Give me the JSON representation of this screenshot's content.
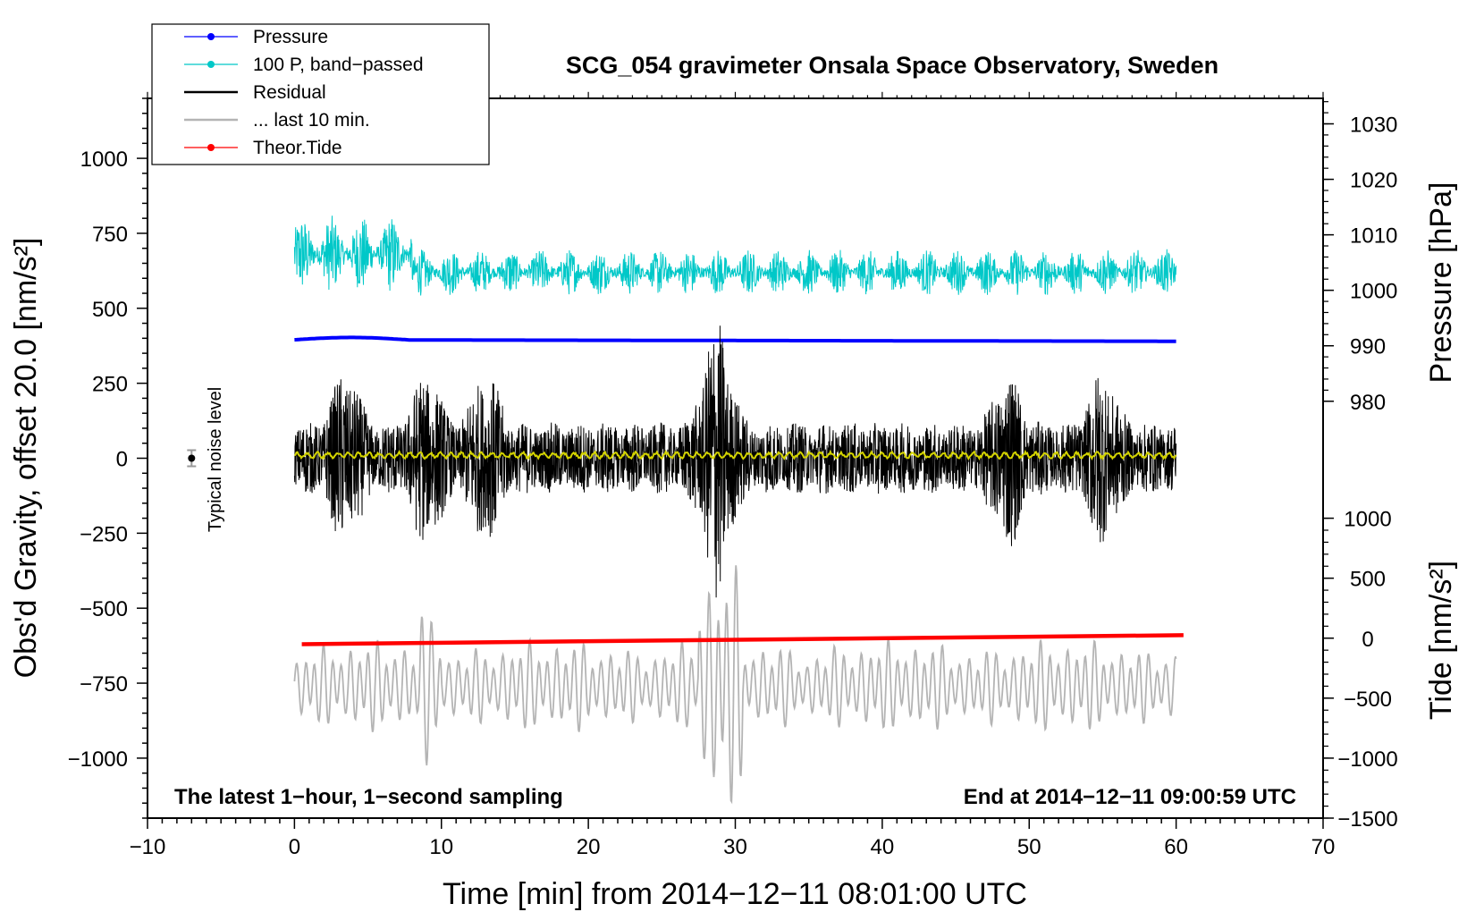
{
  "chart_data": {
    "type": "line",
    "title": "SCG_054 gravimeter Onsala Space Observatory, Sweden",
    "xlabel": "Time [min] from 2014−12−11 08:01:00 UTC",
    "ylabel_left": "Obs'd Gravity, offset 20.0 [nm/s²]",
    "ylabel_right_top": "Pressure [hPa]",
    "ylabel_right_bottom": "Tide [nm/s²]",
    "xlim": [
      -10,
      70
    ],
    "ylim_left": [
      -1200,
      1200
    ],
    "x_ticks": [
      -10,
      0,
      10,
      20,
      30,
      40,
      50,
      60,
      70
    ],
    "x_tick_labels": [
      "−10",
      "0",
      "10",
      "20",
      "30",
      "40",
      "50",
      "60",
      "70"
    ],
    "y_left_ticks": [
      1000,
      750,
      500,
      250,
      0,
      -250,
      -500,
      -750,
      -1000
    ],
    "y_left_tick_labels": [
      "1000",
      "750",
      "500",
      "250",
      "0",
      "−250",
      "−500",
      "−750",
      "−1000"
    ],
    "pressure_axis": {
      "ticks": [
        1030,
        1020,
        1010,
        1000,
        990,
        980
      ],
      "tick_labels": [
        "1030",
        "1020",
        "1010",
        "1000",
        "990",
        "980"
      ],
      "ticks_in_left_units": [
        1115,
        930,
        745,
        560,
        375,
        190
      ]
    },
    "tide_axis": {
      "ticks": [
        1000,
        500,
        0,
        -500,
        -1000,
        -1500
      ],
      "tick_labels": [
        "1000",
        "500",
        "0",
        "−500",
        "−1000",
        "−1500"
      ],
      "ticks_in_left_units": [
        -200,
        -400,
        -600,
        -800,
        -1000,
        -1200
      ]
    },
    "legend": [
      {
        "label": "Pressure",
        "color": "#0000ff",
        "marker": true
      },
      {
        "label": "100 P, band−passed",
        "color": "#00c8c8",
        "marker": true
      },
      {
        "label": "Residual",
        "color": "#000000",
        "marker": false
      },
      {
        "label": "... last 10 min.",
        "color": "#b4b4b4",
        "marker": false
      },
      {
        "label": "Theor.Tide",
        "color": "#ff0000",
        "marker": true
      }
    ],
    "series": [
      {
        "name": "Pressure",
        "color": "#0000ff",
        "x_range": [
          0,
          60
        ],
        "level_left_units": 395,
        "level_end_left_units": 390,
        "pressure_hPa_approx": 991
      },
      {
        "name": "100 P, band−passed",
        "color": "#00c8c8",
        "x_range": [
          0,
          60
        ],
        "center_left_units": 620,
        "amplitude_left_units": 130
      },
      {
        "name": "Residual",
        "color": "#000000",
        "x_range": [
          0,
          60
        ],
        "center_left_units": 0,
        "amplitude_left_units": 150,
        "burst_peaks_min": [
          3.5,
          9,
          13,
          28.5,
          29,
          48.5,
          55
        ]
      },
      {
        "name": "Residual smoothed",
        "color": "#d4d400",
        "x_range": [
          0,
          60
        ],
        "center_left_units": 10
      },
      {
        "name": "... last 10 min.",
        "color": "#b4b4b4",
        "x_range": [
          0,
          60
        ],
        "center_left_units": -760,
        "amplitude_left_units": 140
      },
      {
        "name": "Theor.Tide",
        "color": "#ff0000",
        "x_range": [
          0.5,
          60.5
        ],
        "start_left_units": -620,
        "end_left_units": -590
      }
    ],
    "noise_marker": {
      "x": -7,
      "y": 0,
      "label": "Typical noise level"
    },
    "annotations": {
      "bottom_left": "The latest 1−hour, 1−second sampling",
      "bottom_right": "End at 2014−12−11 09:00:59 UTC"
    }
  }
}
